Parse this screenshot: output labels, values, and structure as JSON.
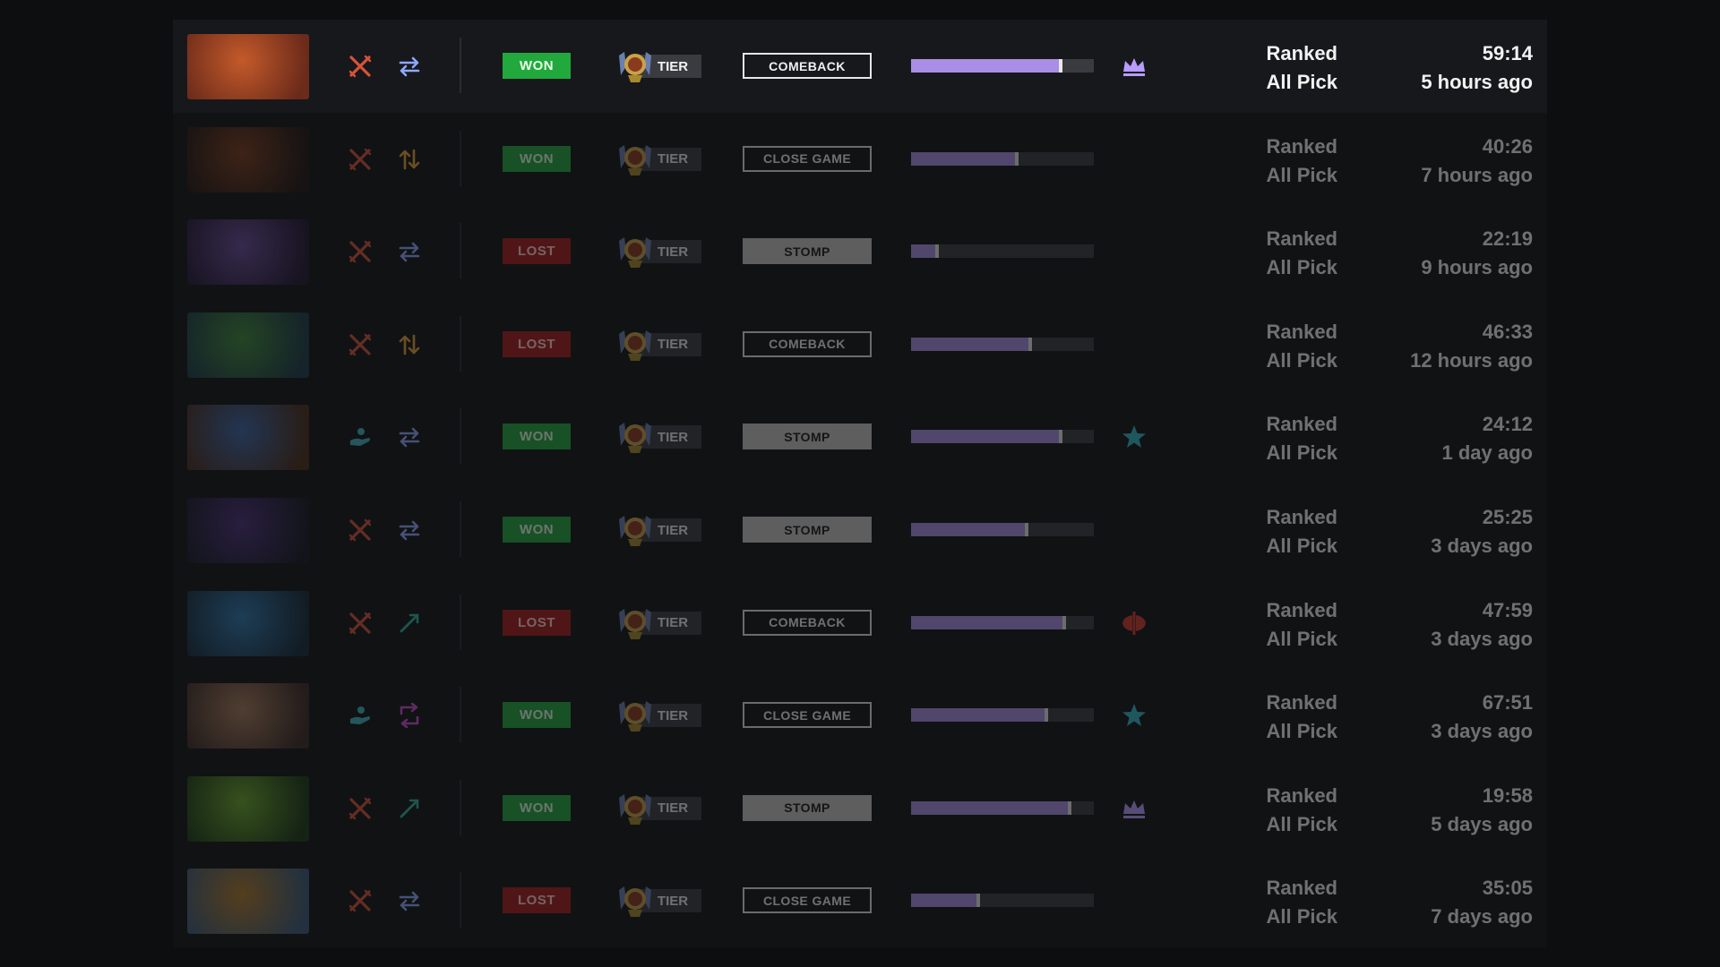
{
  "colors": {
    "won": "#22a93d",
    "lost": "#a81d1d",
    "bar_fill": "#a98ee6",
    "bar_track": "#3a3b40",
    "role_core": "#d9523a",
    "role_support": "#3fb5c2",
    "lane_safe": "#8fa8ff",
    "lane_mid": "#2fb39f",
    "lane_off": "#e6a236",
    "lane_jungle": "#c84fd0",
    "award_crown": "#b89cff",
    "award_star": "#34b7c8",
    "award_axe": "#d33a2c"
  },
  "matches": [
    {
      "hero_icon": "hero-axe-portrait",
      "hero_colors": [
        "#c45a2a",
        "#6b2a1a"
      ],
      "role_icon": "core-swords-icon",
      "lane_icon": "safe-lane-arrows-icon",
      "result": "WON",
      "rank_label": "TIER",
      "tag": "COMEBACK",
      "tag_style": "outline",
      "performance": 0.82,
      "award_icon": "crown-icon",
      "mode_line1": "Ranked",
      "mode_line2": "All Pick",
      "duration": "59:14",
      "when": "5 hours ago",
      "highlight": true
    },
    {
      "hero_icon": "hero-shadow-fiend-portrait",
      "hero_colors": [
        "#7a3a1c",
        "#1e1410"
      ],
      "role_icon": "core-swords-icon",
      "lane_icon": "off-lane-arrows-icon",
      "result": "WON",
      "rank_label": "TIER",
      "tag": "CLOSE GAME",
      "tag_style": "outline",
      "performance": 0.58,
      "award_icon": "",
      "mode_line1": "Ranked",
      "mode_line2": "All Pick",
      "duration": "40:26",
      "when": "7 hours ago",
      "highlight": false
    },
    {
      "hero_icon": "hero-bane-portrait",
      "hero_colors": [
        "#6a4a9a",
        "#201632"
      ],
      "role_icon": "core-swords-icon",
      "lane_icon": "safe-lane-arrows-icon",
      "result": "LOST",
      "rank_label": "TIER",
      "tag": "STOMP",
      "tag_style": "solid",
      "performance": 0.14,
      "award_icon": "",
      "mode_line1": "Ranked",
      "mode_line2": "All Pick",
      "duration": "22:19",
      "when": "9 hours ago",
      "highlight": false
    },
    {
      "hero_icon": "hero-juggernaut-portrait",
      "hero_colors": [
        "#3e8a3a",
        "#1a3a48"
      ],
      "role_icon": "core-swords-icon",
      "lane_icon": "off-lane-arrows-icon",
      "result": "LOST",
      "rank_label": "TIER",
      "tag": "COMEBACK",
      "tag_style": "outline",
      "performance": 0.65,
      "award_icon": "",
      "mode_line1": "Ranked",
      "mode_line2": "All Pick",
      "duration": "46:33",
      "when": "12 hours ago",
      "highlight": false
    },
    {
      "hero_icon": "hero-ogre-magi-portrait",
      "hero_colors": [
        "#3a66a8",
        "#4a2c1a"
      ],
      "role_icon": "support-hand-icon",
      "lane_icon": "safe-lane-arrows-icon",
      "result": "WON",
      "rank_label": "TIER",
      "tag": "STOMP",
      "tag_style": "solid",
      "performance": 0.82,
      "award_icon": "star-icon",
      "mode_line1": "Ranked",
      "mode_line2": "All Pick",
      "duration": "24:12",
      "when": "1 day ago",
      "highlight": false
    },
    {
      "hero_icon": "hero-spectre-portrait",
      "hero_colors": [
        "#4a2e7a",
        "#141824"
      ],
      "role_icon": "core-swords-icon",
      "lane_icon": "safe-lane-arrows-icon",
      "result": "WON",
      "rank_label": "TIER",
      "tag": "STOMP",
      "tag_style": "solid",
      "performance": 0.63,
      "award_icon": "",
      "mode_line1": "Ranked",
      "mode_line2": "All Pick",
      "duration": "25:25",
      "when": "3 days ago",
      "highlight": false
    },
    {
      "hero_icon": "hero-slark-portrait",
      "hero_colors": [
        "#2f78b0",
        "#142a3a"
      ],
      "role_icon": "core-swords-icon",
      "lane_icon": "mid-lane-icon",
      "result": "LOST",
      "rank_label": "TIER",
      "tag": "COMEBACK",
      "tag_style": "outline",
      "performance": 0.84,
      "award_icon": "axe-icon",
      "mode_line1": "Ranked",
      "mode_line2": "All Pick",
      "duration": "47:59",
      "when": "3 days ago",
      "highlight": false
    },
    {
      "hero_icon": "hero-brewmaster-portrait",
      "hero_colors": [
        "#a87a5a",
        "#3a2a24"
      ],
      "role_icon": "support-hand-icon",
      "lane_icon": "jungle-arrows-icon",
      "result": "WON",
      "rank_label": "TIER",
      "tag": "CLOSE GAME",
      "tag_style": "outline",
      "performance": 0.74,
      "award_icon": "star-icon",
      "mode_line1": "Ranked",
      "mode_line2": "All Pick",
      "duration": "67:51",
      "when": "3 days ago",
      "highlight": false
    },
    {
      "hero_icon": "hero-venomancer-portrait",
      "hero_colors": [
        "#6aa82a",
        "#1a3a14"
      ],
      "role_icon": "core-swords-icon",
      "lane_icon": "mid-lane-icon",
      "result": "WON",
      "rank_label": "TIER",
      "tag": "STOMP",
      "tag_style": "solid",
      "performance": 0.87,
      "award_icon": "crown-icon",
      "mode_line1": "Ranked",
      "mode_line2": "All Pick",
      "duration": "19:58",
      "when": "5 days ago",
      "highlight": false
    },
    {
      "hero_icon": "hero-tusk-portrait",
      "hero_colors": [
        "#b07a2a",
        "#3a5a7a"
      ],
      "role_icon": "core-swords-icon",
      "lane_icon": "safe-lane-arrows-icon",
      "result": "LOST",
      "rank_label": "TIER",
      "tag": "CLOSE GAME",
      "tag_style": "outline",
      "performance": 0.37,
      "award_icon": "",
      "mode_line1": "Ranked",
      "mode_line2": "All Pick",
      "duration": "35:05",
      "when": "7 days ago",
      "highlight": false
    }
  ]
}
